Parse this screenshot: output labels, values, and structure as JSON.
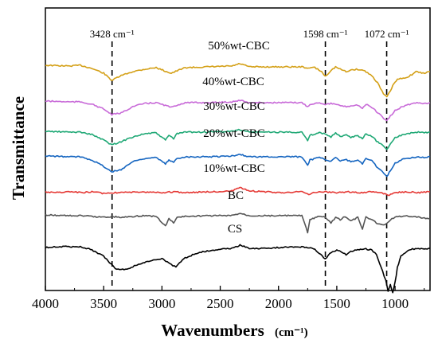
{
  "chart_data": {
    "type": "line",
    "xlabel": "Wavenumbers",
    "xunit": "(cm⁻¹)",
    "ylabel": "Transmittance",
    "xlim": [
      4000,
      700
    ],
    "x_reversed": true,
    "y_ticks_shown": false,
    "x_ticks": [
      {
        "value": 4000,
        "label": "4000"
      },
      {
        "value": 3500,
        "label": "3500"
      },
      {
        "value": 3000,
        "label": "3000"
      },
      {
        "value": 2500,
        "label": "2500"
      },
      {
        "value": 2000,
        "label": "2000"
      },
      {
        "value": 1500,
        "label": "1500"
      },
      {
        "value": 1000,
        "label": "1000"
      }
    ],
    "reference_lines": [
      {
        "x": 3428,
        "label": "3428 cm⁻¹"
      },
      {
        "x": 1598,
        "label": "1598 cm⁻¹"
      },
      {
        "x": 1072,
        "label": "1072 cm⁻¹"
      }
    ],
    "series": [
      {
        "name": "50%wt-CBC",
        "color": "#d4a017",
        "points": [
          [
            4000,
            72
          ],
          [
            3800,
            73
          ],
          [
            3700,
            72
          ],
          [
            3600,
            76
          ],
          [
            3500,
            82
          ],
          [
            3430,
            91
          ],
          [
            3350,
            85
          ],
          [
            3250,
            80
          ],
          [
            3150,
            77
          ],
          [
            3050,
            75
          ],
          [
            2960,
            80
          ],
          [
            2920,
            82
          ],
          [
            2870,
            79
          ],
          [
            2800,
            75
          ],
          [
            2600,
            74
          ],
          [
            2400,
            73
          ],
          [
            2330,
            70
          ],
          [
            2250,
            74
          ],
          [
            2000,
            74
          ],
          [
            1800,
            74
          ],
          [
            1730,
            76
          ],
          [
            1700,
            74
          ],
          [
            1630,
            80
          ],
          [
            1600,
            86
          ],
          [
            1560,
            80
          ],
          [
            1510,
            74
          ],
          [
            1470,
            77
          ],
          [
            1420,
            80
          ],
          [
            1380,
            78
          ],
          [
            1320,
            77
          ],
          [
            1260,
            79
          ],
          [
            1200,
            85
          ],
          [
            1150,
            94
          ],
          [
            1100,
            108
          ],
          [
            1070,
            112
          ],
          [
            1040,
            104
          ],
          [
            1010,
            95
          ],
          [
            980,
            90
          ],
          [
            930,
            88
          ],
          [
            880,
            86
          ],
          [
            820,
            80
          ],
          [
            760,
            82
          ],
          [
            700,
            80
          ]
        ]
      },
      {
        "name": "40%wt-CBC",
        "color": "#c86ad8",
        "points": [
          [
            4000,
            117
          ],
          [
            3800,
            118
          ],
          [
            3700,
            118
          ],
          [
            3600,
            121
          ],
          [
            3500,
            127
          ],
          [
            3430,
            134
          ],
          [
            3350,
            132
          ],
          [
            3250,
            124
          ],
          [
            3150,
            120
          ],
          [
            3050,
            119
          ],
          [
            2960,
            123
          ],
          [
            2920,
            125
          ],
          [
            2870,
            122
          ],
          [
            2800,
            119
          ],
          [
            2600,
            119
          ],
          [
            2400,
            118
          ],
          [
            2330,
            116
          ],
          [
            2250,
            119
          ],
          [
            2000,
            119
          ],
          [
            1800,
            119
          ],
          [
            1750,
            124
          ],
          [
            1730,
            121
          ],
          [
            1650,
            119
          ],
          [
            1600,
            121
          ],
          [
            1550,
            120
          ],
          [
            1430,
            124
          ],
          [
            1380,
            123
          ],
          [
            1320,
            122
          ],
          [
            1280,
            126
          ],
          [
            1250,
            121
          ],
          [
            1200,
            125
          ],
          [
            1160,
            130
          ],
          [
            1110,
            137
          ],
          [
            1070,
            142
          ],
          [
            1040,
            136
          ],
          [
            1000,
            129
          ],
          [
            950,
            125
          ],
          [
            900,
            122
          ],
          [
            850,
            120
          ],
          [
            800,
            119
          ],
          [
            750,
            120
          ],
          [
            700,
            119
          ]
        ]
      },
      {
        "name": "30%wt-CBC",
        "color": "#1fa875",
        "points": [
          [
            4000,
            155
          ],
          [
            3800,
            156
          ],
          [
            3700,
            156
          ],
          [
            3600,
            159
          ],
          [
            3500,
            166
          ],
          [
            3430,
            172
          ],
          [
            3350,
            168
          ],
          [
            3250,
            162
          ],
          [
            3150,
            158
          ],
          [
            3050,
            157
          ],
          [
            2970,
            166
          ],
          [
            2940,
            160
          ],
          [
            2900,
            164
          ],
          [
            2870,
            158
          ],
          [
            2800,
            156
          ],
          [
            2600,
            156
          ],
          [
            2400,
            155
          ],
          [
            2330,
            153
          ],
          [
            2250,
            156
          ],
          [
            2000,
            156
          ],
          [
            1800,
            156
          ],
          [
            1750,
            167
          ],
          [
            1730,
            160
          ],
          [
            1650,
            157
          ],
          [
            1600,
            158
          ],
          [
            1550,
            162
          ],
          [
            1510,
            157
          ],
          [
            1470,
            162
          ],
          [
            1430,
            159
          ],
          [
            1380,
            163
          ],
          [
            1320,
            160
          ],
          [
            1280,
            165
          ],
          [
            1250,
            158
          ],
          [
            1200,
            161
          ],
          [
            1160,
            167
          ],
          [
            1110,
            172
          ],
          [
            1070,
            178
          ],
          [
            1040,
            170
          ],
          [
            1000,
            163
          ],
          [
            950,
            160
          ],
          [
            900,
            158
          ],
          [
            850,
            157
          ],
          [
            800,
            156
          ],
          [
            750,
            157
          ],
          [
            700,
            156
          ]
        ]
      },
      {
        "name": "20%wt-CBC",
        "color": "#1565c0",
        "points": [
          [
            4000,
            186
          ],
          [
            3800,
            187
          ],
          [
            3700,
            187
          ],
          [
            3600,
            191
          ],
          [
            3500,
            199
          ],
          [
            3430,
            206
          ],
          [
            3350,
            203
          ],
          [
            3250,
            193
          ],
          [
            3150,
            189
          ],
          [
            3050,
            188
          ],
          [
            2970,
            196
          ],
          [
            2940,
            191
          ],
          [
            2900,
            194
          ],
          [
            2870,
            189
          ],
          [
            2800,
            187
          ],
          [
            2600,
            187
          ],
          [
            2400,
            186
          ],
          [
            2330,
            184
          ],
          [
            2250,
            187
          ],
          [
            2000,
            187
          ],
          [
            1800,
            187
          ],
          [
            1750,
            197
          ],
          [
            1730,
            191
          ],
          [
            1650,
            188
          ],
          [
            1600,
            190
          ],
          [
            1550,
            193
          ],
          [
            1510,
            188
          ],
          [
            1470,
            192
          ],
          [
            1430,
            190
          ],
          [
            1380,
            193
          ],
          [
            1320,
            191
          ],
          [
            1280,
            196
          ],
          [
            1250,
            189
          ],
          [
            1200,
            192
          ],
          [
            1160,
            199
          ],
          [
            1110,
            205
          ],
          [
            1070,
            212
          ],
          [
            1040,
            204
          ],
          [
            1000,
            195
          ],
          [
            950,
            191
          ],
          [
            900,
            189
          ],
          [
            850,
            188
          ],
          [
            800,
            187
          ],
          [
            750,
            188
          ],
          [
            700,
            187
          ]
        ]
      },
      {
        "name": "10%wt-CBC",
        "color": "#e53935",
        "points": [
          [
            4000,
            231
          ],
          [
            3900,
            232
          ],
          [
            3800,
            231
          ],
          [
            3700,
            232
          ],
          [
            3600,
            231
          ],
          [
            3500,
            233
          ],
          [
            3400,
            232
          ],
          [
            3300,
            231
          ],
          [
            3200,
            232
          ],
          [
            3100,
            231
          ],
          [
            3000,
            232
          ],
          [
            2900,
            231
          ],
          [
            2800,
            232
          ],
          [
            2600,
            231
          ],
          [
            2400,
            230
          ],
          [
            2330,
            226
          ],
          [
            2250,
            230
          ],
          [
            2100,
            231
          ],
          [
            2000,
            232
          ],
          [
            1800,
            231
          ],
          [
            1740,
            234
          ],
          [
            1700,
            232
          ],
          [
            1600,
            231
          ],
          [
            1500,
            232
          ],
          [
            1400,
            231
          ],
          [
            1300,
            232
          ],
          [
            1200,
            231
          ],
          [
            1100,
            233
          ],
          [
            1050,
            235
          ],
          [
            1000,
            232
          ],
          [
            900,
            231
          ],
          [
            800,
            232
          ],
          [
            700,
            231
          ]
        ]
      },
      {
        "name": "BC",
        "color": "#555555",
        "points": [
          [
            4000,
            260
          ],
          [
            3800,
            261
          ],
          [
            3700,
            261
          ],
          [
            3600,
            262
          ],
          [
            3500,
            263
          ],
          [
            3430,
            262
          ],
          [
            3350,
            263
          ],
          [
            3250,
            262
          ],
          [
            3150,
            261
          ],
          [
            3050,
            262
          ],
          [
            2970,
            274
          ],
          [
            2940,
            265
          ],
          [
            2900,
            270
          ],
          [
            2870,
            263
          ],
          [
            2800,
            262
          ],
          [
            2600,
            261
          ],
          [
            2400,
            261
          ],
          [
            2330,
            258
          ],
          [
            2250,
            261
          ],
          [
            2000,
            261
          ],
          [
            1800,
            261
          ],
          [
            1750,
            282
          ],
          [
            1730,
            266
          ],
          [
            1650,
            262
          ],
          [
            1600,
            263
          ],
          [
            1550,
            270
          ],
          [
            1510,
            263
          ],
          [
            1470,
            266
          ],
          [
            1430,
            262
          ],
          [
            1380,
            268
          ],
          [
            1320,
            263
          ],
          [
            1280,
            278
          ],
          [
            1250,
            263
          ],
          [
            1200,
            266
          ],
          [
            1160,
            270
          ],
          [
            1110,
            273
          ],
          [
            1070,
            271
          ],
          [
            1040,
            266
          ],
          [
            1000,
            263
          ],
          [
            950,
            262
          ],
          [
            900,
            261
          ],
          [
            850,
            262
          ],
          [
            800,
            263
          ],
          [
            750,
            264
          ],
          [
            700,
            265
          ]
        ]
      },
      {
        "name": "CS",
        "color": "#000000",
        "points": [
          [
            4000,
            301
          ],
          [
            3900,
            300
          ],
          [
            3800,
            300
          ],
          [
            3700,
            300
          ],
          [
            3600,
            304
          ],
          [
            3500,
            312
          ],
          [
            3450,
            320
          ],
          [
            3400,
            327
          ],
          [
            3350,
            329
          ],
          [
            3300,
            328
          ],
          [
            3250,
            325
          ],
          [
            3200,
            322
          ],
          [
            3100,
            318
          ],
          [
            3000,
            315
          ],
          [
            2920,
            322
          ],
          [
            2880,
            326
          ],
          [
            2850,
            320
          ],
          [
            2800,
            314
          ],
          [
            2700,
            308
          ],
          [
            2600,
            305
          ],
          [
            2500,
            303
          ],
          [
            2400,
            302
          ],
          [
            2330,
            298
          ],
          [
            2250,
            302
          ],
          [
            2100,
            302
          ],
          [
            2000,
            301
          ],
          [
            1800,
            300
          ],
          [
            1700,
            302
          ],
          [
            1650,
            308
          ],
          [
            1600,
            316
          ],
          [
            1560,
            308
          ],
          [
            1500,
            304
          ],
          [
            1420,
            310
          ],
          [
            1380,
            306
          ],
          [
            1320,
            304
          ],
          [
            1250,
            303
          ],
          [
            1200,
            304
          ],
          [
            1160,
            310
          ],
          [
            1120,
            326
          ],
          [
            1080,
            342
          ],
          [
            1060,
            356
          ],
          [
            1040,
            348
          ],
          [
            1020,
            358
          ],
          [
            1000,
            345
          ],
          [
            980,
            326
          ],
          [
            950,
            312
          ],
          [
            900,
            306
          ],
          [
            850,
            303
          ],
          [
            800,
            302
          ],
          [
            750,
            303
          ],
          [
            700,
            302
          ]
        ]
      }
    ]
  }
}
